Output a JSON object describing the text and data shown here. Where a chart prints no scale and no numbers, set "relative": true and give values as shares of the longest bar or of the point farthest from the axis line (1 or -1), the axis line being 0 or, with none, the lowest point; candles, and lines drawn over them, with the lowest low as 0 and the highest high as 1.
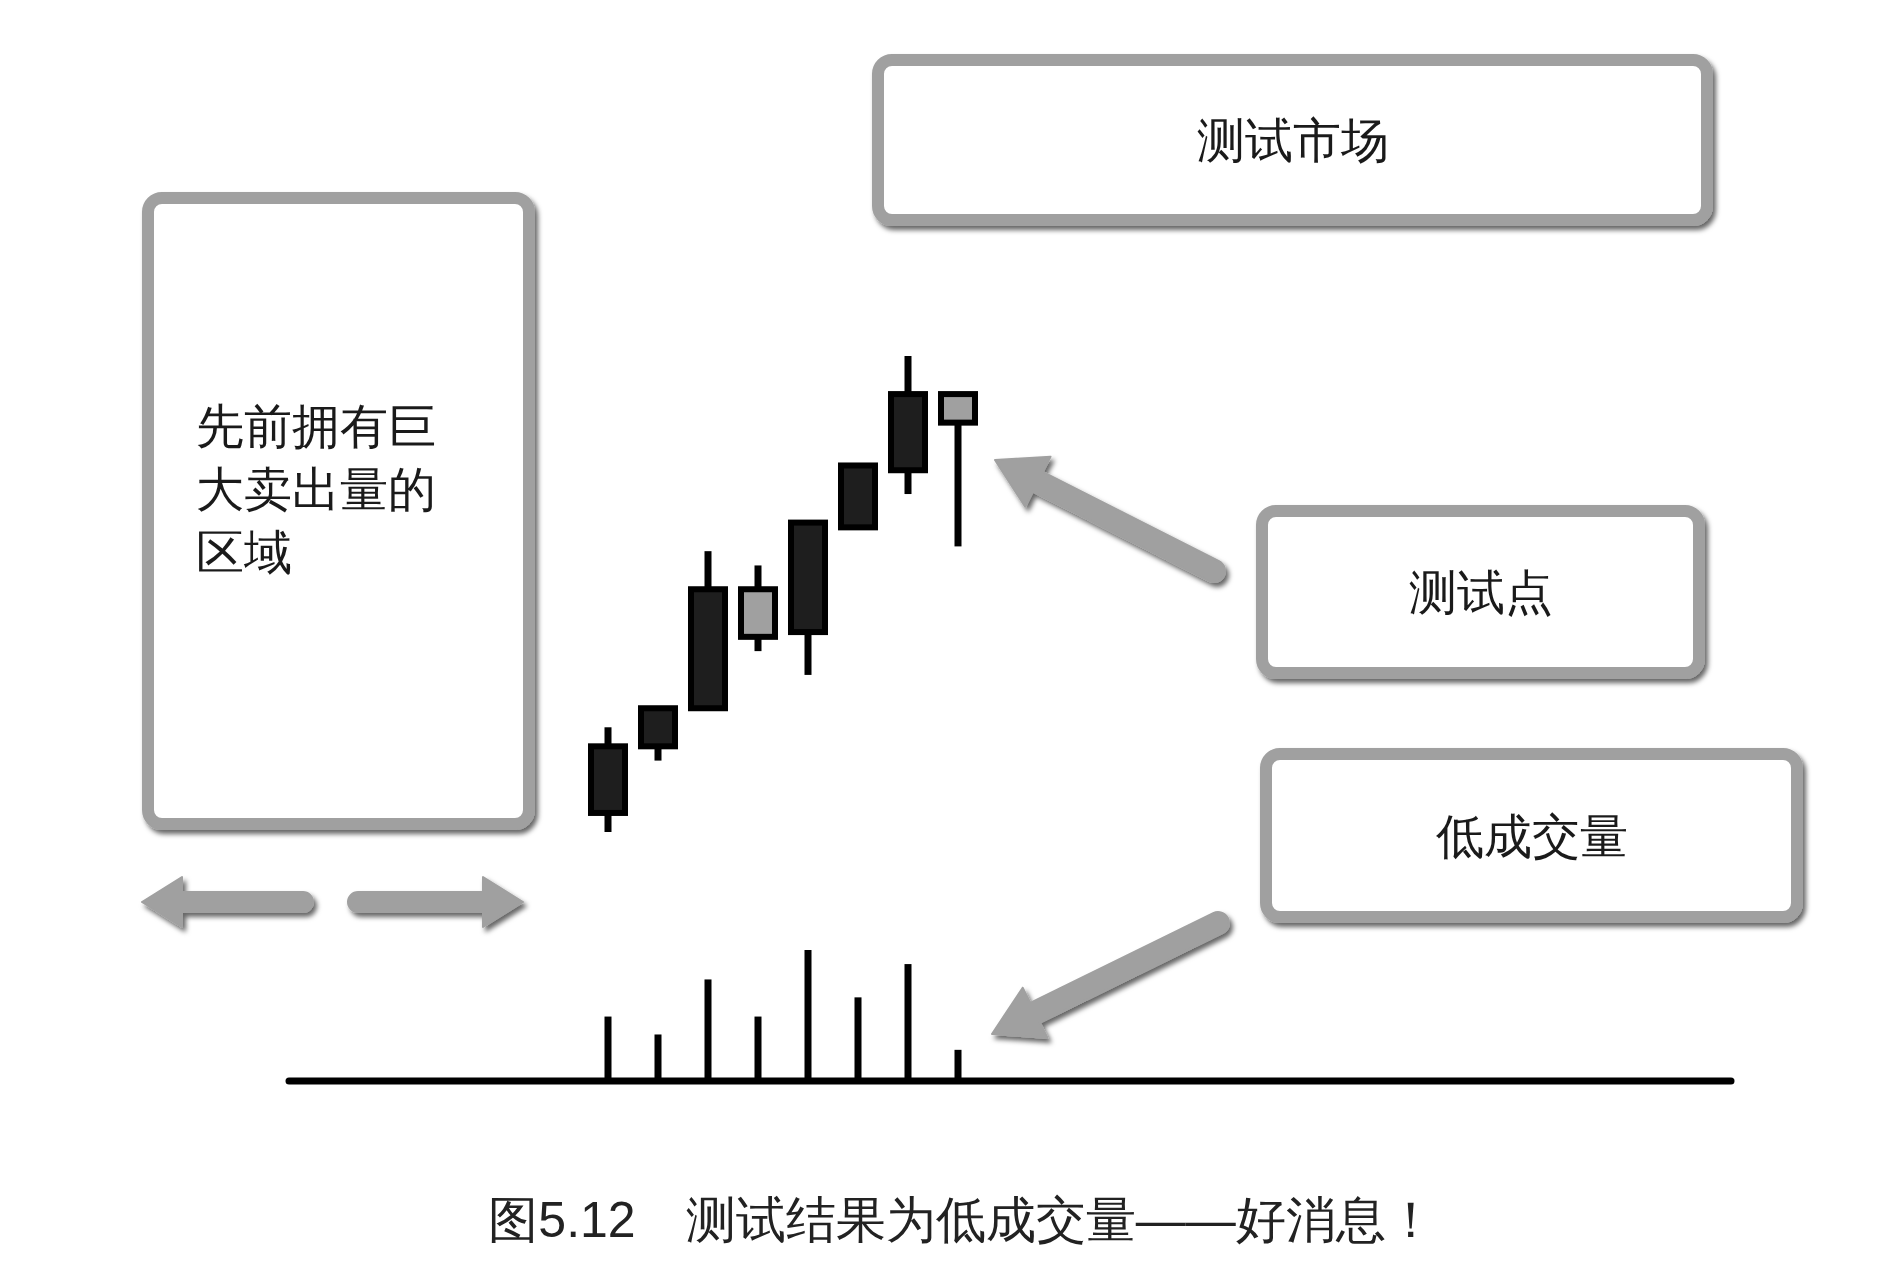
{
  "chart_data": [
    {
      "type": "candlestick",
      "relative": true,
      "categories": [
        null,
        null,
        null,
        null,
        null,
        null,
        null,
        null
      ],
      "ohlc": [
        [
          0.04,
          0.22,
          0,
          0.18
        ],
        [
          0.18,
          0.26,
          0.15,
          0.26
        ],
        [
          0.26,
          0.59,
          0.26,
          0.51
        ],
        [
          0.51,
          0.56,
          0.38,
          0.41
        ],
        [
          0.42,
          0.65,
          0.33,
          0.65
        ],
        [
          0.64,
          0.77,
          0.64,
          0.77
        ],
        [
          0.76,
          1,
          0.71,
          0.92
        ],
        [
          0.92,
          0.92,
          0.6,
          0.86
        ]
      ],
      "colors": [
        "#1e1e1e",
        "#1e1e1e",
        "#1e1e1e",
        "#a0a0a0",
        "#1e1e1e",
        "#1e1e1e",
        "#1e1e1e",
        "#a0a0a0"
      ],
      "annotations": [
        "先前拥有巨大卖出量的区域",
        "测试市场",
        "测试点"
      ]
    },
    {
      "type": "bar",
      "relative": true,
      "categories": [
        null,
        null,
        null,
        null,
        null,
        null,
        null,
        null
      ],
      "values": [
        0.48,
        0.34,
        0.77,
        0.48,
        1,
        0.63,
        0.89,
        0.22
      ],
      "color": "#000000",
      "annotations": [
        "低成交量",
        "图5.12　测试结果为低成交量——好消息！"
      ]
    }
  ]
}
